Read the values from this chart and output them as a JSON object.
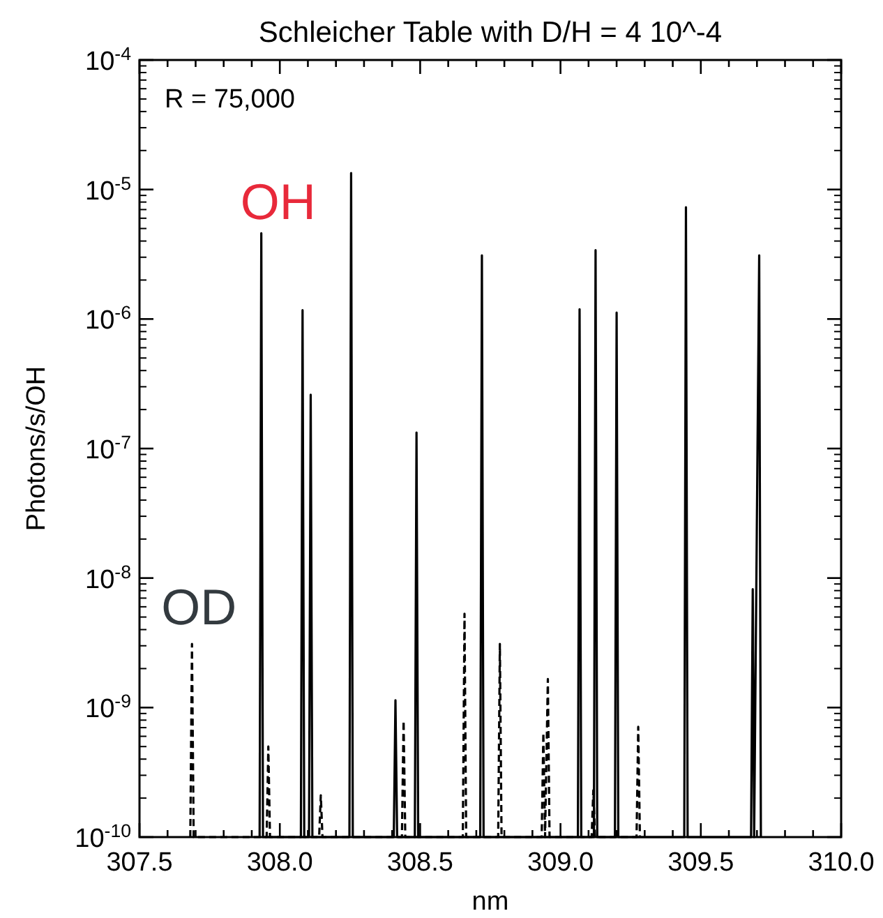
{
  "chart_data": {
    "type": "line",
    "title": "Schleicher Table with D/H = 4 10^-4",
    "xlabel": "nm",
    "ylabel": "Photons/s/OH",
    "log": "y",
    "grid": false,
    "annotations": [
      "R = 75,000"
    ],
    "xlim": [
      307.5,
      310.0
    ],
    "xticks": [
      {
        "value": 307.5,
        "label": "307.5"
      },
      {
        "value": 307.6,
        "label": null
      },
      {
        "value": 307.7,
        "label": null
      },
      {
        "value": 307.8,
        "label": null
      },
      {
        "value": 307.9,
        "label": null
      },
      {
        "value": 308.0,
        "label": "308.0"
      },
      {
        "value": 308.1,
        "label": null
      },
      {
        "value": 308.2,
        "label": null
      },
      {
        "value": 308.3,
        "label": null
      },
      {
        "value": 308.4,
        "label": null
      },
      {
        "value": 308.5,
        "label": "308.5"
      },
      {
        "value": 308.6,
        "label": null
      },
      {
        "value": 308.7,
        "label": null
      },
      {
        "value": 308.8,
        "label": null
      },
      {
        "value": 308.9,
        "label": null
      },
      {
        "value": 309.0,
        "label": "309.0"
      },
      {
        "value": 309.1,
        "label": null
      },
      {
        "value": 309.2,
        "label": null
      },
      {
        "value": 309.3,
        "label": null
      },
      {
        "value": 309.4,
        "label": null
      },
      {
        "value": 309.5,
        "label": "309.5"
      },
      {
        "value": 309.6,
        "label": null
      },
      {
        "value": 309.7,
        "label": null
      },
      {
        "value": 309.8,
        "label": null
      },
      {
        "value": 309.9,
        "label": null
      },
      {
        "value": 310.0,
        "label": "310.0"
      }
    ],
    "ylim": [
      1e-10,
      0.0001
    ],
    "yticks": [
      {
        "value": 1e-10,
        "label": "10$^{-10}$"
      },
      {
        "value": 1e-09,
        "label": "10$^{-9}$"
      },
      {
        "value": 1e-08,
        "label": "10$^{-8}$"
      },
      {
        "value": 1e-07,
        "label": "10$^{-7}$"
      },
      {
        "value": 1e-06,
        "label": "10$^{-6}$"
      },
      {
        "value": 1e-05,
        "label": "10$^{-5}$"
      },
      {
        "value": 0.0001,
        "label": "10$^{-4}$"
      }
    ],
    "series": [
      {
        "name": "OH",
        "color": "#000000",
        "line_style": "solid",
        "x": [
          307.928,
          307.934,
          307.94,
          308.075,
          308.081,
          308.087,
          308.104,
          308.11,
          308.116,
          308.248,
          308.254,
          308.26,
          308.406,
          308.412,
          308.418,
          308.481,
          308.487,
          308.493,
          308.714,
          308.72,
          308.726,
          309.062,
          309.068,
          309.074,
          309.119,
          309.125,
          309.131,
          309.194,
          309.2,
          309.206,
          309.441,
          309.447,
          309.453,
          309.679,
          309.685,
          309.69,
          309.708,
          309.714
        ],
        "values": [
          1e-10,
          4.6e-06,
          1e-10,
          1e-10,
          1.17e-06,
          1e-10,
          1e-10,
          2.6e-07,
          1e-10,
          1e-10,
          1.34e-05,
          1e-10,
          1e-10,
          1.14e-09,
          1e-10,
          1e-10,
          1.33e-07,
          1e-10,
          1e-10,
          3.1e-06,
          1e-10,
          1e-10,
          1.19e-06,
          1e-10,
          1e-10,
          3.4e-06,
          1e-10,
          1e-10,
          1.12e-06,
          1e-10,
          1e-10,
          7.3e-06,
          1e-10,
          1e-10,
          8.2e-09,
          1e-10,
          3.1e-06,
          1e-10
        ]
      },
      {
        "name": "OD",
        "color": "#000000",
        "line_style": "dashed",
        "x": [
          307.681,
          307.687,
          307.693,
          307.953,
          307.959,
          307.965,
          308.14,
          308.146,
          308.152,
          308.435,
          308.441,
          308.447,
          308.652,
          308.658,
          308.664,
          308.778,
          308.784,
          308.79,
          308.933,
          308.939,
          308.945,
          308.955,
          308.961,
          309.111,
          309.117,
          309.123,
          309.271,
          309.277,
          309.283
        ],
        "values": [
          1e-10,
          3.1e-09,
          1e-10,
          1e-10,
          5e-10,
          1e-10,
          1e-10,
          2.1e-10,
          1e-10,
          1e-10,
          7.9e-10,
          1e-10,
          1e-10,
          5.3e-09,
          1e-10,
          1e-10,
          3.1e-09,
          1e-10,
          1e-10,
          6.4e-10,
          1e-10,
          1.66e-09,
          1e-10,
          1e-10,
          2.3e-10,
          1e-10,
          1e-10,
          7.1e-10,
          1e-10
        ]
      }
    ]
  }
}
